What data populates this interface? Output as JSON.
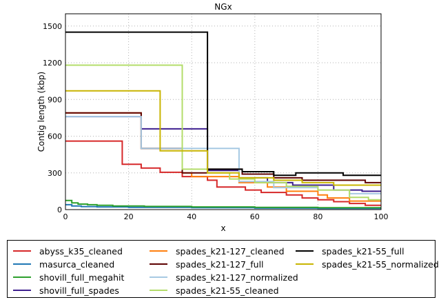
{
  "chart_data": {
    "type": "line",
    "title": "NGx",
    "xlabel": "x",
    "ylabel": "Contig length (kbp)",
    "xlim": [
      0,
      100
    ],
    "ylim": [
      0,
      1600
    ],
    "xticks": [
      0,
      20,
      40,
      60,
      80,
      100
    ],
    "yticks": [
      0,
      300,
      600,
      900,
      1200,
      1500
    ],
    "xtick_labels": [
      "0",
      "20",
      "40",
      "60",
      "80",
      "100"
    ],
    "ytick_labels": [
      "0",
      "300",
      "600",
      "900",
      "1200",
      "1500"
    ],
    "grid": true,
    "legend_position": "below",
    "series": [
      {
        "name": "abyss_k35_cleaned",
        "color": "#d62728",
        "points": [
          [
            0,
            560
          ],
          [
            18,
            560
          ],
          [
            18,
            370
          ],
          [
            24,
            370
          ],
          [
            24,
            340
          ],
          [
            30,
            340
          ],
          [
            30,
            305
          ],
          [
            37,
            305
          ],
          [
            37,
            270
          ],
          [
            45,
            270
          ],
          [
            45,
            240
          ],
          [
            48,
            240
          ],
          [
            48,
            185
          ],
          [
            57,
            185
          ],
          [
            57,
            160
          ],
          [
            62,
            160
          ],
          [
            62,
            140
          ],
          [
            70,
            140
          ],
          [
            70,
            120
          ],
          [
            75,
            120
          ],
          [
            75,
            95
          ],
          [
            80,
            95
          ],
          [
            80,
            80
          ],
          [
            85,
            80
          ],
          [
            85,
            65
          ],
          [
            90,
            65
          ],
          [
            90,
            50
          ],
          [
            95,
            50
          ],
          [
            95,
            35
          ],
          [
            100,
            35
          ]
        ]
      },
      {
        "name": "masurca_cleaned",
        "color": "#1f77b4",
        "points": [
          [
            0,
            40
          ],
          [
            2,
            40
          ],
          [
            2,
            30
          ],
          [
            5,
            30
          ],
          [
            5,
            25
          ],
          [
            10,
            25
          ],
          [
            10,
            22
          ],
          [
            20,
            22
          ],
          [
            20,
            18
          ],
          [
            40,
            18
          ],
          [
            40,
            15
          ],
          [
            60,
            15
          ],
          [
            60,
            12
          ],
          [
            80,
            12
          ],
          [
            80,
            10
          ],
          [
            100,
            10
          ]
        ]
      },
      {
        "name": "shovill_full_megahit",
        "color": "#2ca02c",
        "points": [
          [
            0,
            75
          ],
          [
            2,
            75
          ],
          [
            2,
            55
          ],
          [
            4,
            55
          ],
          [
            4,
            45
          ],
          [
            7,
            45
          ],
          [
            7,
            40
          ],
          [
            10,
            40
          ],
          [
            10,
            35
          ],
          [
            15,
            35
          ],
          [
            15,
            30
          ],
          [
            25,
            30
          ],
          [
            25,
            26
          ],
          [
            40,
            26
          ],
          [
            40,
            22
          ],
          [
            60,
            22
          ],
          [
            60,
            18
          ],
          [
            80,
            18
          ],
          [
            80,
            15
          ],
          [
            100,
            15
          ]
        ]
      },
      {
        "name": "shovill_full_spades",
        "color": "#3d1f8f",
        "points": [
          [
            0,
            760
          ],
          [
            24,
            760
          ],
          [
            24,
            660
          ],
          [
            45,
            660
          ],
          [
            45,
            320
          ],
          [
            55,
            320
          ],
          [
            55,
            260
          ],
          [
            64,
            260
          ],
          [
            64,
            220
          ],
          [
            72,
            220
          ],
          [
            72,
            200
          ],
          [
            85,
            200
          ],
          [
            85,
            160
          ],
          [
            94,
            160
          ],
          [
            94,
            150
          ],
          [
            100,
            150
          ]
        ]
      },
      {
        "name": "spades_k21-127_cleaned",
        "color": "#ff7f0e",
        "points": [
          [
            0,
            790
          ],
          [
            24,
            790
          ],
          [
            24,
            500
          ],
          [
            37,
            500
          ],
          [
            37,
            300
          ],
          [
            40,
            300
          ],
          [
            40,
            270
          ],
          [
            55,
            270
          ],
          [
            55,
            220
          ],
          [
            64,
            220
          ],
          [
            64,
            185
          ],
          [
            70,
            185
          ],
          [
            70,
            150
          ],
          [
            80,
            150
          ],
          [
            80,
            120
          ],
          [
            83,
            120
          ],
          [
            83,
            95
          ],
          [
            90,
            95
          ],
          [
            90,
            70
          ],
          [
            100,
            70
          ]
        ]
      },
      {
        "name": "spades_k21-127_full",
        "color": "#5c0000",
        "points": [
          [
            0,
            790
          ],
          [
            24,
            790
          ],
          [
            24,
            500
          ],
          [
            37,
            500
          ],
          [
            37,
            300
          ],
          [
            45,
            300
          ],
          [
            45,
            330
          ],
          [
            56,
            330
          ],
          [
            56,
            290
          ],
          [
            66,
            290
          ],
          [
            66,
            260
          ],
          [
            75,
            260
          ],
          [
            75,
            240
          ],
          [
            95,
            240
          ],
          [
            95,
            220
          ],
          [
            100,
            220
          ]
        ]
      },
      {
        "name": "spades_k21-127_normalized",
        "color": "#a6c9e3",
        "points": [
          [
            0,
            760
          ],
          [
            24,
            760
          ],
          [
            24,
            500
          ],
          [
            55,
            500
          ],
          [
            55,
            230
          ],
          [
            66,
            230
          ],
          [
            66,
            180
          ],
          [
            80,
            180
          ],
          [
            80,
            160
          ],
          [
            90,
            160
          ],
          [
            90,
            130
          ],
          [
            100,
            130
          ]
        ]
      },
      {
        "name": "spades_k21-55_cleaned",
        "color": "#b3dc6a",
        "points": [
          [
            0,
            1180
          ],
          [
            37,
            1180
          ],
          [
            37,
            330
          ],
          [
            45,
            330
          ],
          [
            45,
            300
          ],
          [
            52,
            300
          ],
          [
            52,
            250
          ],
          [
            60,
            250
          ],
          [
            60,
            220
          ],
          [
            70,
            220
          ],
          [
            70,
            190
          ],
          [
            80,
            190
          ],
          [
            80,
            160
          ],
          [
            90,
            160
          ],
          [
            90,
            100
          ],
          [
            96,
            100
          ],
          [
            96,
            80
          ],
          [
            100,
            80
          ]
        ]
      },
      {
        "name": "spades_k21-55_full",
        "color": "#000000",
        "points": [
          [
            0,
            1450
          ],
          [
            45,
            1450
          ],
          [
            45,
            330
          ],
          [
            56,
            330
          ],
          [
            56,
            310
          ],
          [
            66,
            310
          ],
          [
            66,
            280
          ],
          [
            73,
            280
          ],
          [
            73,
            300
          ],
          [
            80,
            300
          ],
          [
            80,
            300
          ],
          [
            88,
            300
          ],
          [
            88,
            280
          ],
          [
            100,
            280
          ]
        ]
      },
      {
        "name": "spades_k21-55_normalized",
        "color": "#c8b400",
        "points": [
          [
            0,
            970
          ],
          [
            30,
            970
          ],
          [
            30,
            480
          ],
          [
            45,
            480
          ],
          [
            45,
            300
          ],
          [
            55,
            300
          ],
          [
            55,
            260
          ],
          [
            66,
            260
          ],
          [
            66,
            240
          ],
          [
            75,
            240
          ],
          [
            75,
            220
          ],
          [
            85,
            220
          ],
          [
            85,
            200
          ],
          [
            100,
            200
          ]
        ]
      }
    ]
  },
  "legend": {
    "items": [
      {
        "label": "abyss_k35_cleaned",
        "color": "#d62728"
      },
      {
        "label": "masurca_cleaned",
        "color": "#1f77b4"
      },
      {
        "label": "shovill_full_megahit",
        "color": "#2ca02c"
      },
      {
        "label": "shovill_full_spades",
        "color": "#3d1f8f"
      },
      {
        "label": "spades_k21-127_cleaned",
        "color": "#ff7f0e"
      },
      {
        "label": "spades_k21-127_full",
        "color": "#5c0000"
      },
      {
        "label": "spades_k21-127_normalized",
        "color": "#a6c9e3"
      },
      {
        "label": "spades_k21-55_cleaned",
        "color": "#b3dc6a"
      },
      {
        "label": "spades_k21-55_full",
        "color": "#000000"
      },
      {
        "label": "spades_k21-55_normalized",
        "color": "#c8b400"
      }
    ]
  }
}
